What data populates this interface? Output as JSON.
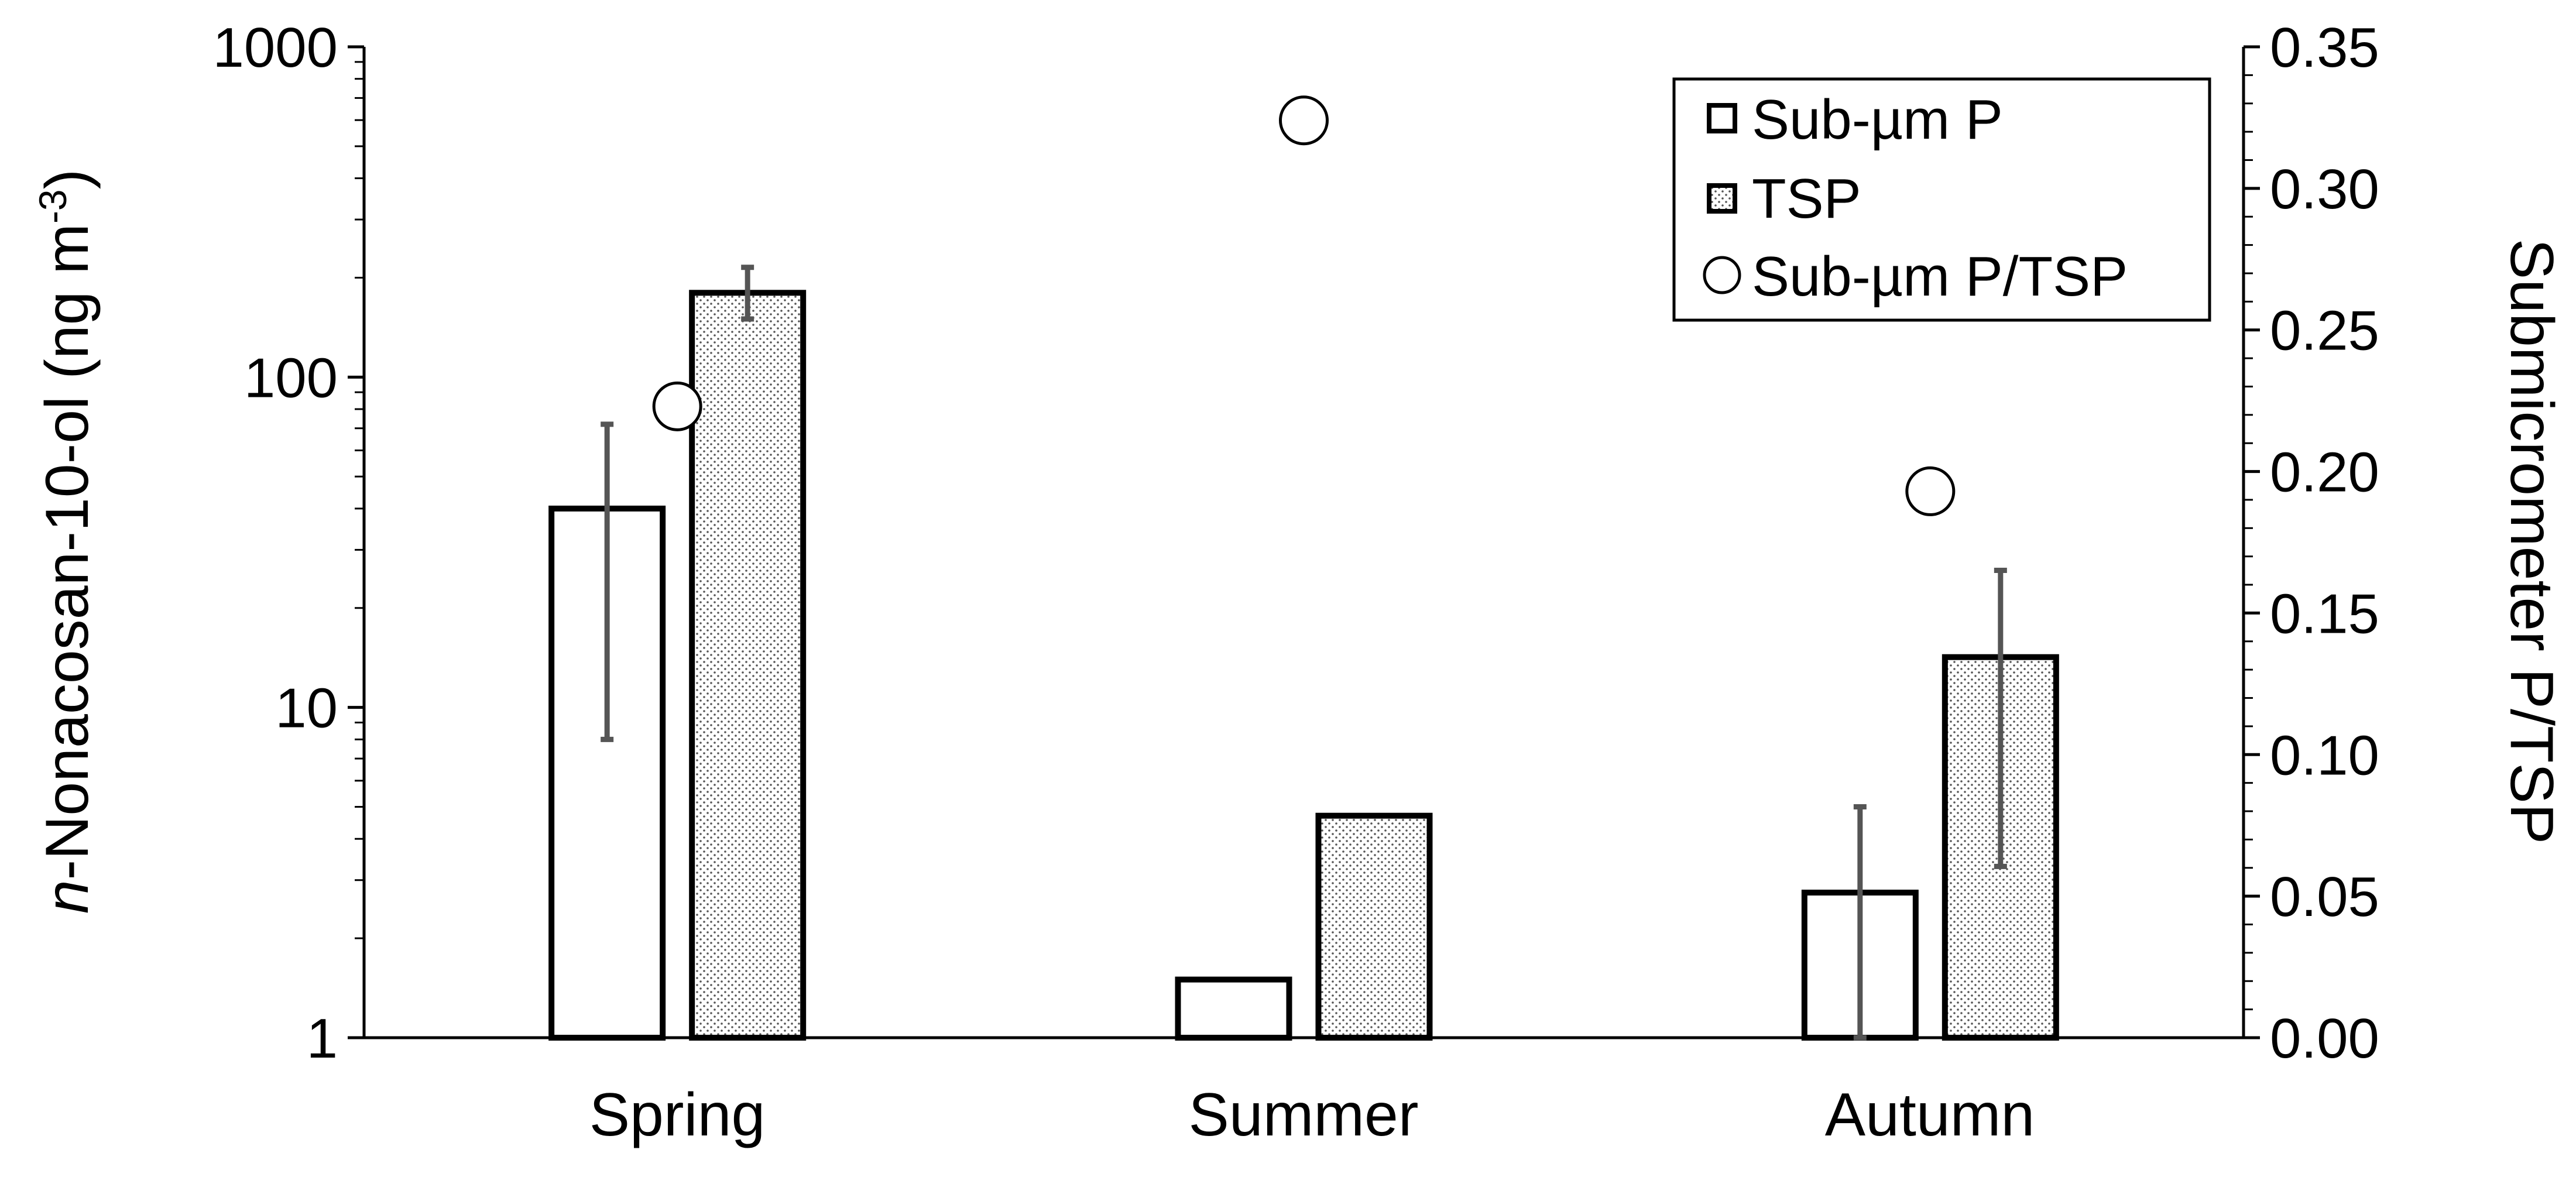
{
  "chart_data": {
    "type": "bar",
    "categories": [
      "Spring",
      "Summer",
      "Autumn"
    ],
    "y_left": {
      "label_prefix_italic": "n",
      "label_main": "-Nonacosan-10-ol (ng m",
      "label_sup": "-3",
      "label_close": ")",
      "scale": "log",
      "ylim": [
        1,
        1000
      ],
      "ticks": [
        1,
        10,
        100,
        1000
      ],
      "tick_labels": [
        "1",
        "10",
        "100",
        "1000"
      ]
    },
    "y_right": {
      "label": "Submicrometer P/TSP",
      "scale": "linear",
      "ylim": [
        0,
        0.35
      ],
      "ticks": [
        0,
        0.05,
        0.1,
        0.15,
        0.2,
        0.25,
        0.3,
        0.35
      ],
      "tick_labels": [
        "0.00",
        "0.05",
        "0.10",
        "0.15",
        "0.20",
        "0.25",
        "0.30",
        "0.35"
      ]
    },
    "series": [
      {
        "name": "Sub-µm P",
        "axis": "left",
        "kind": "bar",
        "fill": "#ffffff",
        "values": [
          40,
          1.5,
          2.75
        ],
        "error_low": [
          8,
          null,
          1
        ],
        "error_high": [
          72,
          null,
          5
        ]
      },
      {
        "name": "TSP",
        "axis": "left",
        "kind": "bar",
        "fill": "dotted",
        "values": [
          180,
          4.7,
          14.2
        ],
        "error_low": [
          150,
          null,
          3.3
        ],
        "error_high": [
          215,
          null,
          26
        ]
      },
      {
        "name": "Sub-µm P/TSP",
        "axis": "right",
        "kind": "marker",
        "marker": "open-circle",
        "values": [
          0.223,
          0.324,
          0.193
        ]
      }
    ],
    "legend": {
      "position": "top-right"
    },
    "grid": false,
    "colors": {
      "bar_edge": "#000000",
      "error_bar": "#555555",
      "dots": "#555555"
    }
  }
}
